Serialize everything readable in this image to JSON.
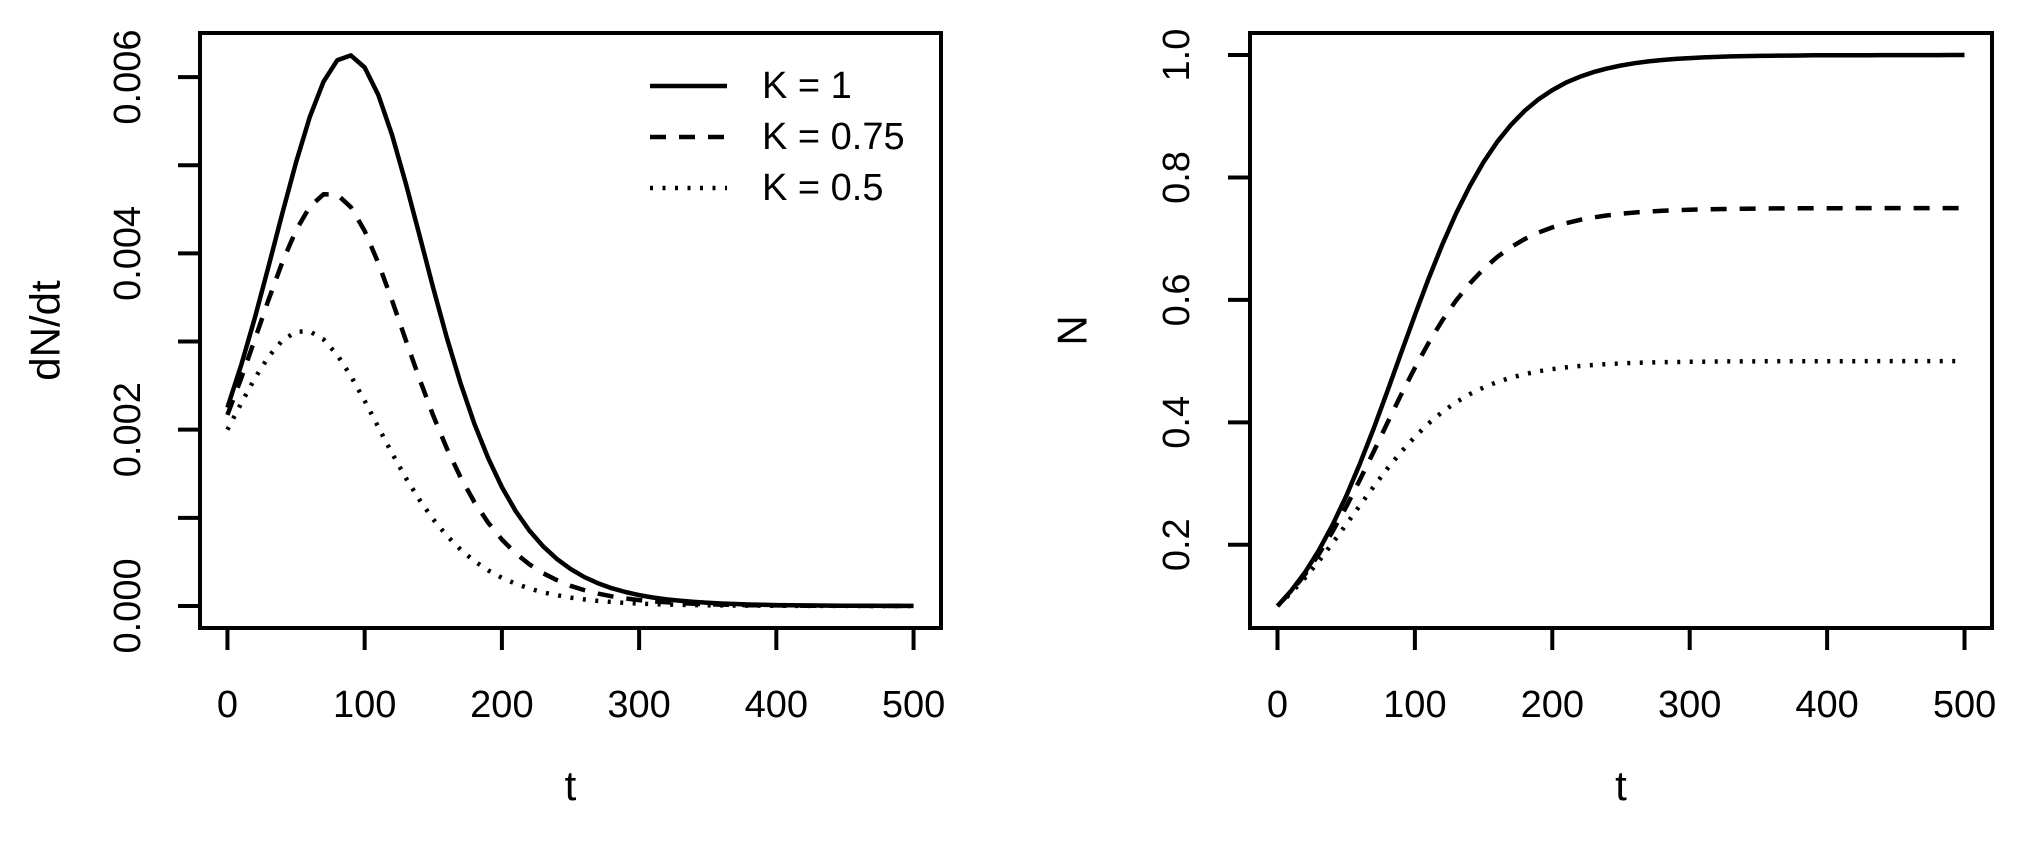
{
  "figure": {
    "background": "#ffffff",
    "foreground": "#000000"
  },
  "chart_data": [
    {
      "type": "line",
      "title": "",
      "xlabel": "t",
      "ylabel": "dN/dt",
      "xlim": [
        -20,
        520
      ],
      "ylim": [
        -0.00025,
        0.0065
      ],
      "grid": false,
      "xticks": [
        {
          "v": 0,
          "label": "0"
        },
        {
          "v": 100,
          "label": "100"
        },
        {
          "v": 200,
          "label": "200"
        },
        {
          "v": 300,
          "label": "300"
        },
        {
          "v": 400,
          "label": "400"
        },
        {
          "v": 500,
          "label": "500"
        }
      ],
      "yticks": [
        {
          "v": 0,
          "label": "0.000"
        },
        {
          "v": 0.001,
          "label": ""
        },
        {
          "v": 0.002,
          "label": "0.002"
        },
        {
          "v": 0.003,
          "label": ""
        },
        {
          "v": 0.004,
          "label": "0.004"
        },
        {
          "v": 0.005,
          "label": ""
        },
        {
          "v": 0.006,
          "label": "0.006"
        }
      ],
      "legend": {
        "position": "top-right",
        "entries": [
          {
            "label": "K = 1",
            "linestyle": "solid"
          },
          {
            "label": "K = 0.75",
            "linestyle": "dashed"
          },
          {
            "label": "K = 0.5",
            "linestyle": "dotted"
          }
        ]
      },
      "x": [
        0,
        10,
        20,
        30,
        40,
        50,
        60,
        70,
        80,
        90,
        100,
        110,
        120,
        130,
        140,
        150,
        160,
        170,
        180,
        190,
        200,
        210,
        220,
        230,
        240,
        250,
        260,
        270,
        280,
        290,
        300,
        310,
        320,
        330,
        340,
        350,
        360,
        370,
        380,
        390,
        400,
        410,
        420,
        430,
        440,
        450,
        460,
        470,
        480,
        490,
        500
      ],
      "series": [
        {
          "name": "K = 1",
          "K": 1,
          "linestyle": "solid",
          "values": [
            0.00225,
            0.002732,
            0.003271,
            0.003854,
            0.004454,
            0.005034,
            0.005548,
            0.005948,
            0.00619,
            0.006246,
            0.006109,
            0.005796,
            0.005342,
            0.004794,
            0.004201,
            0.003604,
            0.003037,
            0.002521,
            0.002066,
            0.001676,
            0.001348,
            0.001077,
            0.000856,
            0.000677,
            0.000534,
            0.00042,
            0.000329,
            0.000258,
            0.000202,
            0.000158,
            0.000123,
            9.6e-05,
            7.5e-05,
            5.9e-05,
            4.6e-05,
            3.6e-05,
            2.8e-05,
            2.2e-05,
            1.7e-05,
            1.3e-05,
            1e-05,
            8e-06,
            6e-06,
            5e-06,
            4e-06,
            3e-06,
            2e-06,
            2e-06,
            1e-06,
            1e-06,
            1e-06
          ]
        },
        {
          "name": "K = 0.75",
          "K": 0.75,
          "linestyle": "dashed",
          "values": [
            0.002167,
            0.002583,
            0.003026,
            0.003475,
            0.003899,
            0.004263,
            0.004529,
            0.00467,
            0.004668,
            0.004524,
            0.004254,
            0.003889,
            0.003464,
            0.003015,
            0.002572,
            0.002157,
            0.001783,
            0.001456,
            0.001178,
            0.000945,
            0.000754,
            0.000598,
            0.000473,
            0.000372,
            0.000293,
            0.000229,
            0.00018,
            0.00014,
            0.00011,
            8.6e-05,
            6.7e-05,
            5.2e-05,
            4.1e-05,
            3.2e-05,
            2.5e-05,
            1.9e-05,
            1.5e-05,
            1.2e-05,
            9e-06,
            7e-06,
            6e-06,
            4e-06,
            3e-06,
            3e-06,
            2e-06,
            2e-06,
            1e-06,
            1e-06,
            1e-06,
            1e-06,
            0
          ]
        },
        {
          "name": "K = 0.5",
          "K": 0.5,
          "linestyle": "dotted",
          "values": [
            0.002,
            0.002299,
            0.002584,
            0.002829,
            0.003011,
            0.003111,
            0.003115,
            0.003024,
            0.002849,
            0.002608,
            0.002326,
            0.002027,
            0.001731,
            0.001453,
            0.001202,
            0.000982,
            0.000795,
            0.000638,
            0.000509,
            0.000404,
            0.000319,
            0.000252,
            0.000198,
            0.000155,
            0.000122,
            9.5e-05,
            7.4e-05,
            5.8e-05,
            4.5e-05,
            3.5e-05,
            2.7e-05,
            2.1e-05,
            1.7e-05,
            1.3e-05,
            1e-05,
            8e-06,
            6e-06,
            5e-06,
            4e-06,
            3e-06,
            2e-06,
            2e-06,
            1e-06,
            1e-06,
            1e-06,
            1e-06,
            1e-06,
            0,
            0,
            0,
            0
          ]
        }
      ]
    },
    {
      "type": "line",
      "title": "",
      "xlabel": "t",
      "ylabel": "N",
      "xlim": [
        -20,
        520
      ],
      "ylim": [
        0.064,
        1.036
      ],
      "grid": false,
      "xticks": [
        {
          "v": 0,
          "label": "0"
        },
        {
          "v": 100,
          "label": "100"
        },
        {
          "v": 200,
          "label": "200"
        },
        {
          "v": 300,
          "label": "300"
        },
        {
          "v": 400,
          "label": "400"
        },
        {
          "v": 500,
          "label": "500"
        }
      ],
      "yticks": [
        {
          "v": 0.2,
          "label": "0.2"
        },
        {
          "v": 0.4,
          "label": "0.4"
        },
        {
          "v": 0.6,
          "label": "0.6"
        },
        {
          "v": 0.8,
          "label": "0.8"
        },
        {
          "v": 1.0,
          "label": "1.0"
        }
      ],
      "legend": null,
      "x": [
        0,
        10,
        20,
        30,
        40,
        50,
        60,
        70,
        80,
        90,
        100,
        110,
        120,
        130,
        140,
        150,
        160,
        170,
        180,
        190,
        200,
        210,
        220,
        230,
        240,
        250,
        260,
        270,
        280,
        290,
        300,
        310,
        320,
        330,
        340,
        350,
        360,
        370,
        380,
        390,
        400,
        410,
        420,
        430,
        440,
        450,
        460,
        470,
        480,
        490,
        500
      ],
      "series": [
        {
          "name": "K = 1",
          "K": 1,
          "linestyle": "solid",
          "values": [
            0.1,
            0.1249,
            0.1548,
            0.1904,
            0.232,
            0.2794,
            0.3324,
            0.39,
            0.4508,
            0.5132,
            0.5751,
            0.6348,
            0.6906,
            0.7413,
            0.7863,
            0.8253,
            0.8585,
            0.8862,
            0.9091,
            0.9278,
            0.9428,
            0.9549,
            0.9645,
            0.9722,
            0.9782,
            0.9829,
            0.9867,
            0.9896,
            0.9919,
            0.9937,
            0.995,
            0.9961,
            0.997,
            0.9977,
            0.9982,
            0.9986,
            0.9989,
            0.9991,
            0.9993,
            0.9995,
            0.9996,
            0.9997,
            0.9998,
            0.9998,
            0.9999,
            0.9999,
            0.9999,
            0.9999,
            0.9999,
            1.0,
            1.0
          ]
        },
        {
          "name": "K = 0.75",
          "K": 0.75,
          "linestyle": "dashed",
          "values": [
            0.1,
            0.1237,
            0.1517,
            0.1843,
            0.2212,
            0.262,
            0.3061,
            0.3522,
            0.399,
            0.4451,
            0.4891,
            0.5298,
            0.5666,
            0.599,
            0.6269,
            0.6506,
            0.6702,
            0.6864,
            0.6995,
            0.7101,
            0.7185,
            0.7253,
            0.7306,
            0.7348,
            0.7381,
            0.7407,
            0.7427,
            0.7443,
            0.7456,
            0.7466,
            0.7473,
            0.7479,
            0.7484,
            0.7487,
            0.749,
            0.7492,
            0.7494,
            0.7495,
            0.7496,
            0.7497,
            0.7498,
            0.7498,
            0.7499,
            0.7499,
            0.7499,
            0.7499,
            0.75,
            0.75,
            0.75,
            0.75,
            0.75
          ]
        },
        {
          "name": "K = 0.5",
          "K": 0.5,
          "linestyle": "dotted",
          "values": [
            0.1,
            0.1215,
            0.1459,
            0.173,
            0.2023,
            0.233,
            0.2642,
            0.295,
            0.3244,
            0.3517,
            0.3764,
            0.3982,
            0.417,
            0.4329,
            0.4461,
            0.457,
            0.4659,
            0.473,
            0.4787,
            0.4833,
            0.4869,
            0.4897,
            0.492,
            0.4937,
            0.4951,
            0.4962,
            0.497,
            0.4977,
            0.4982,
            0.4986,
            0.4989,
            0.4991,
            0.4993,
            0.4995,
            0.4996,
            0.4997,
            0.4997,
            0.4998,
            0.4998,
            0.4999,
            0.4999,
            0.4999,
            0.4999,
            0.5,
            0.5,
            0.5,
            0.5,
            0.5,
            0.5,
            0.5,
            0.5
          ]
        }
      ]
    }
  ]
}
